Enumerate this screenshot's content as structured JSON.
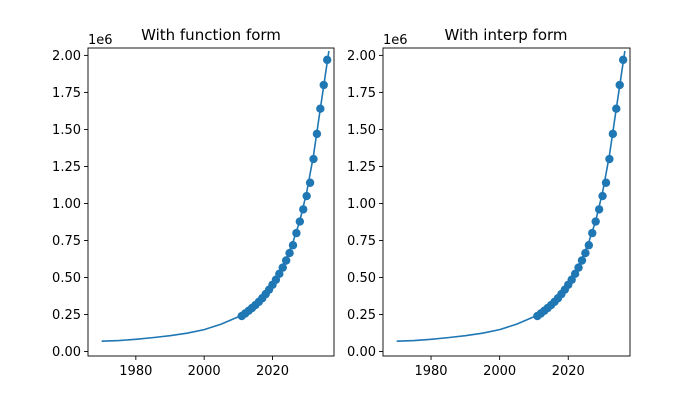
{
  "figure": {
    "background": "#ffffff"
  },
  "chart_data": [
    {
      "type": "line",
      "title": "With function form",
      "xlabel": "",
      "ylabel": "",
      "y_offset_label": "1e6",
      "xlim": [
        1966,
        2038
      ],
      "ylim": [
        -0.03,
        2.05
      ],
      "x_ticks": [
        1980,
        2000,
        2020
      ],
      "x_tick_labels": [
        "1980",
        "2000",
        "2020"
      ],
      "y_ticks": [
        0.0,
        0.25,
        0.5,
        0.75,
        1.0,
        1.25,
        1.5,
        1.75,
        2.0
      ],
      "y_tick_labels": [
        "0.00",
        "0.25",
        "0.50",
        "0.75",
        "1.00",
        "1.25",
        "1.50",
        "1.75",
        "2.00"
      ],
      "grid": false,
      "color": "#1f77b4",
      "series": [
        {
          "style": "line",
          "x": [
            1970,
            1975,
            1980,
            1985,
            1990,
            1995,
            2000,
            2005,
            2010,
            2012,
            2014,
            2016,
            2018,
            2020,
            2022,
            2024,
            2026,
            2028,
            2030,
            2032,
            2034,
            2036.5
          ],
          "y": [
            0.07,
            0.074,
            0.083,
            0.094,
            0.107,
            0.124,
            0.148,
            0.185,
            0.235,
            0.268,
            0.302,
            0.345,
            0.398,
            0.457,
            0.535,
            0.627,
            0.74,
            0.883,
            1.075,
            1.325,
            1.64,
            2.03
          ]
        },
        {
          "style": "markers",
          "x": [
            2011,
            2012,
            2013,
            2014,
            2015,
            2016,
            2017,
            2018,
            2019,
            2020,
            2021,
            2022,
            2023,
            2024,
            2025,
            2026,
            2027,
            2028,
            2029,
            2030,
            2031,
            2032,
            2033,
            2034,
            2035,
            2036
          ],
          "y": [
            0.24,
            0.257,
            0.275,
            0.294,
            0.314,
            0.336,
            0.36,
            0.388,
            0.418,
            0.451,
            0.485,
            0.525,
            0.567,
            0.615,
            0.665,
            0.718,
            0.8,
            0.878,
            0.96,
            1.05,
            1.14,
            1.3,
            1.47,
            1.64,
            1.8,
            1.97
          ]
        }
      ]
    },
    {
      "type": "line",
      "title": "With interp form",
      "xlabel": "",
      "ylabel": "",
      "y_offset_label": "1e6",
      "xlim": [
        1966,
        2038
      ],
      "ylim": [
        -0.03,
        2.05
      ],
      "x_ticks": [
        1980,
        2000,
        2020
      ],
      "x_tick_labels": [
        "1980",
        "2000",
        "2020"
      ],
      "y_ticks": [
        0.0,
        0.25,
        0.5,
        0.75,
        1.0,
        1.25,
        1.5,
        1.75,
        2.0
      ],
      "y_tick_labels": [
        "0.00",
        "0.25",
        "0.50",
        "0.75",
        "1.00",
        "1.25",
        "1.50",
        "1.75",
        "2.00"
      ],
      "grid": false,
      "color": "#1f77b4",
      "series": [
        {
          "style": "line",
          "x": [
            1970,
            1975,
            1980,
            1985,
            1990,
            1995,
            2000,
            2005,
            2010,
            2012,
            2014,
            2016,
            2018,
            2020,
            2022,
            2024,
            2026,
            2028,
            2030,
            2032,
            2034,
            2036.5
          ],
          "y": [
            0.07,
            0.074,
            0.083,
            0.094,
            0.107,
            0.124,
            0.148,
            0.185,
            0.235,
            0.268,
            0.302,
            0.345,
            0.398,
            0.457,
            0.535,
            0.627,
            0.74,
            0.883,
            1.075,
            1.325,
            1.64,
            2.03
          ]
        },
        {
          "style": "markers",
          "x": [
            2011,
            2012,
            2013,
            2014,
            2015,
            2016,
            2017,
            2018,
            2019,
            2020,
            2021,
            2022,
            2023,
            2024,
            2025,
            2026,
            2027,
            2028,
            2029,
            2030,
            2031,
            2032,
            2033,
            2034,
            2035,
            2036
          ],
          "y": [
            0.24,
            0.257,
            0.275,
            0.294,
            0.314,
            0.336,
            0.36,
            0.388,
            0.418,
            0.451,
            0.485,
            0.525,
            0.567,
            0.615,
            0.665,
            0.718,
            0.8,
            0.878,
            0.96,
            1.05,
            1.14,
            1.3,
            1.47,
            1.64,
            1.8,
            1.97
          ]
        }
      ]
    }
  ]
}
